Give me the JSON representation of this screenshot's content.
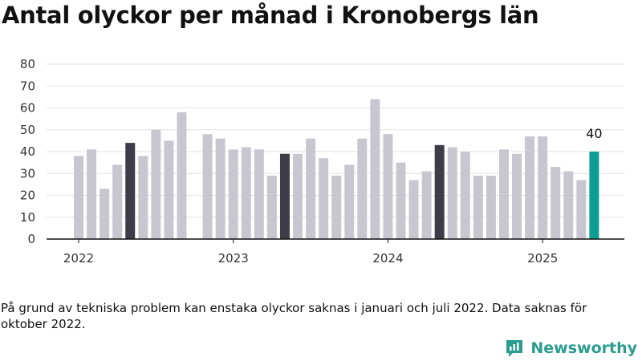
{
  "title": "Antal olyckor per månad i Kronobergs län",
  "footnote": "På grund av tekniska problem kan enstaka olyckor saknas i januari och juli 2022. Data saknas för oktober 2022.",
  "brand": {
    "name": "Newsworthy",
    "icon": "newsworthy-logo-icon",
    "color": "#2a9d8f"
  },
  "chart_data": {
    "type": "bar",
    "title": "Antal olyckor per månad i Kronobergs län",
    "xlabel": "",
    "ylabel": "",
    "ylim": [
      0,
      80
    ],
    "yticks": [
      0,
      10,
      20,
      30,
      40,
      50,
      60,
      70,
      80
    ],
    "grid": true,
    "x_tick_labels": [
      "2022",
      "2023",
      "2024",
      "2025"
    ],
    "categories": [
      "2022-01",
      "2022-02",
      "2022-03",
      "2022-04",
      "2022-05",
      "2022-06",
      "2022-07",
      "2022-08",
      "2022-09",
      "2022-10",
      "2022-11",
      "2022-12",
      "2023-01",
      "2023-02",
      "2023-03",
      "2023-04",
      "2023-05",
      "2023-06",
      "2023-07",
      "2023-08",
      "2023-09",
      "2023-10",
      "2023-11",
      "2023-12",
      "2024-01",
      "2024-02",
      "2024-03",
      "2024-04",
      "2024-05",
      "2024-06",
      "2024-07",
      "2024-08",
      "2024-09",
      "2024-10",
      "2024-11",
      "2024-12",
      "2025-01",
      "2025-02",
      "2025-03",
      "2025-04",
      "2025-05"
    ],
    "values": [
      38,
      41,
      23,
      34,
      44,
      38,
      50,
      45,
      58,
      null,
      48,
      46,
      41,
      42,
      41,
      29,
      39,
      39,
      46,
      37,
      29,
      34,
      46,
      64,
      48,
      35,
      27,
      31,
      43,
      42,
      40,
      29,
      29,
      41,
      39,
      47,
      47,
      33,
      31,
      27,
      40
    ],
    "highlight": {
      "current": {
        "category": "2025-05",
        "color": "#0b9e94",
        "label": "40"
      },
      "same_month_previous_years": {
        "categories": [
          "2022-05",
          "2023-05",
          "2024-05"
        ],
        "color": "#3d3d4a"
      },
      "default_color": "#c8c7d0"
    }
  }
}
